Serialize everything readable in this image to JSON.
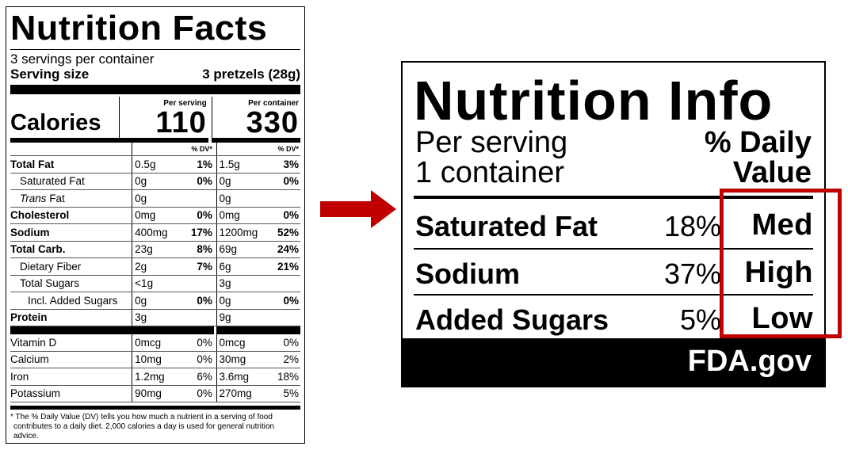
{
  "facts": {
    "title": "Nutrition Facts",
    "servings": "3 servings per container",
    "serving_size_label": "Serving size",
    "serving_size_value": "3 pretzels (28g)",
    "calories_label": "Calories",
    "per_serving_label": "Per serving",
    "per_container_label": "Per container",
    "calories_serving": "110",
    "calories_container": "330",
    "dv_label": "% DV*",
    "rows": [
      {
        "name": "Total Fat",
        "bold": true,
        "indent": 0,
        "a1": "0.5g",
        "p1": "1%",
        "a2": "1.5g",
        "p2": "3%",
        "pbold": true
      },
      {
        "name": "Saturated Fat",
        "bold": false,
        "indent": 1,
        "a1": "0g",
        "p1": "0%",
        "a2": "0g",
        "p2": "0%",
        "pbold": true
      },
      {
        "name": "Trans Fat",
        "bold": false,
        "indent": 1,
        "italic_prefix": "Trans",
        "a1": "0g",
        "p1": "",
        "a2": "0g",
        "p2": "",
        "pbold": true
      },
      {
        "name": "Cholesterol",
        "bold": true,
        "indent": 0,
        "a1": "0mg",
        "p1": "0%",
        "a2": "0mg",
        "p2": "0%",
        "pbold": true
      },
      {
        "name": "Sodium",
        "bold": true,
        "indent": 0,
        "a1": "400mg",
        "p1": "17%",
        "a2": "1200mg",
        "p2": "52%",
        "pbold": true
      },
      {
        "name": "Total Carb.",
        "bold": true,
        "indent": 0,
        "a1": "23g",
        "p1": "8%",
        "a2": "69g",
        "p2": "24%",
        "pbold": true
      },
      {
        "name": "Dietary Fiber",
        "bold": false,
        "indent": 1,
        "a1": "2g",
        "p1": "7%",
        "a2": "6g",
        "p2": "21%",
        "pbold": true
      },
      {
        "name": "Total Sugars",
        "bold": false,
        "indent": 1,
        "a1": "<1g",
        "p1": "",
        "a2": "3g",
        "p2": "",
        "pbold": true
      },
      {
        "name": "Incl. Added Sugars",
        "bold": false,
        "indent": 2,
        "a1": "0g",
        "p1": "0%",
        "a2": "0g",
        "p2": "0%",
        "pbold": true
      },
      {
        "name": "Protein",
        "bold": true,
        "indent": 0,
        "a1": "3g",
        "p1": "",
        "a2": "9g",
        "p2": "",
        "pbold": true
      }
    ],
    "vitamins": [
      {
        "name": "Vitamin D",
        "a1": "0mcg",
        "p1": "0%",
        "a2": "0mcg",
        "p2": "0%"
      },
      {
        "name": "Calcium",
        "a1": "10mg",
        "p1": "0%",
        "a2": "30mg",
        "p2": "2%"
      },
      {
        "name": "Iron",
        "a1": "1.2mg",
        "p1": "6%",
        "a2": "3.6mg",
        "p2": "18%"
      },
      {
        "name": "Potassium",
        "a1": "90mg",
        "p1": "0%",
        "a2": "270mg",
        "p2": "5%"
      }
    ],
    "footnote": "* The % Daily Value (DV) tells you how much a nutrient in a serving of food contributes to a daily diet. 2,000 calories a day is used for general nutrition advice."
  },
  "info": {
    "title": "Nutrition Info",
    "per_serving": "Per serving",
    "container": "1 container",
    "dv_line1": "% Daily",
    "dv_line2": "Value",
    "rows": [
      {
        "name": "Saturated Fat",
        "percent": "18%",
        "level": "Med"
      },
      {
        "name": "Sodium",
        "percent": "37%",
        "level": "High"
      },
      {
        "name": "Added Sugars",
        "percent": "5%",
        "level": "Low"
      }
    ],
    "footer": "FDA.gov"
  },
  "colors": {
    "arrow": "#c00000",
    "highlight": "#c00000"
  }
}
